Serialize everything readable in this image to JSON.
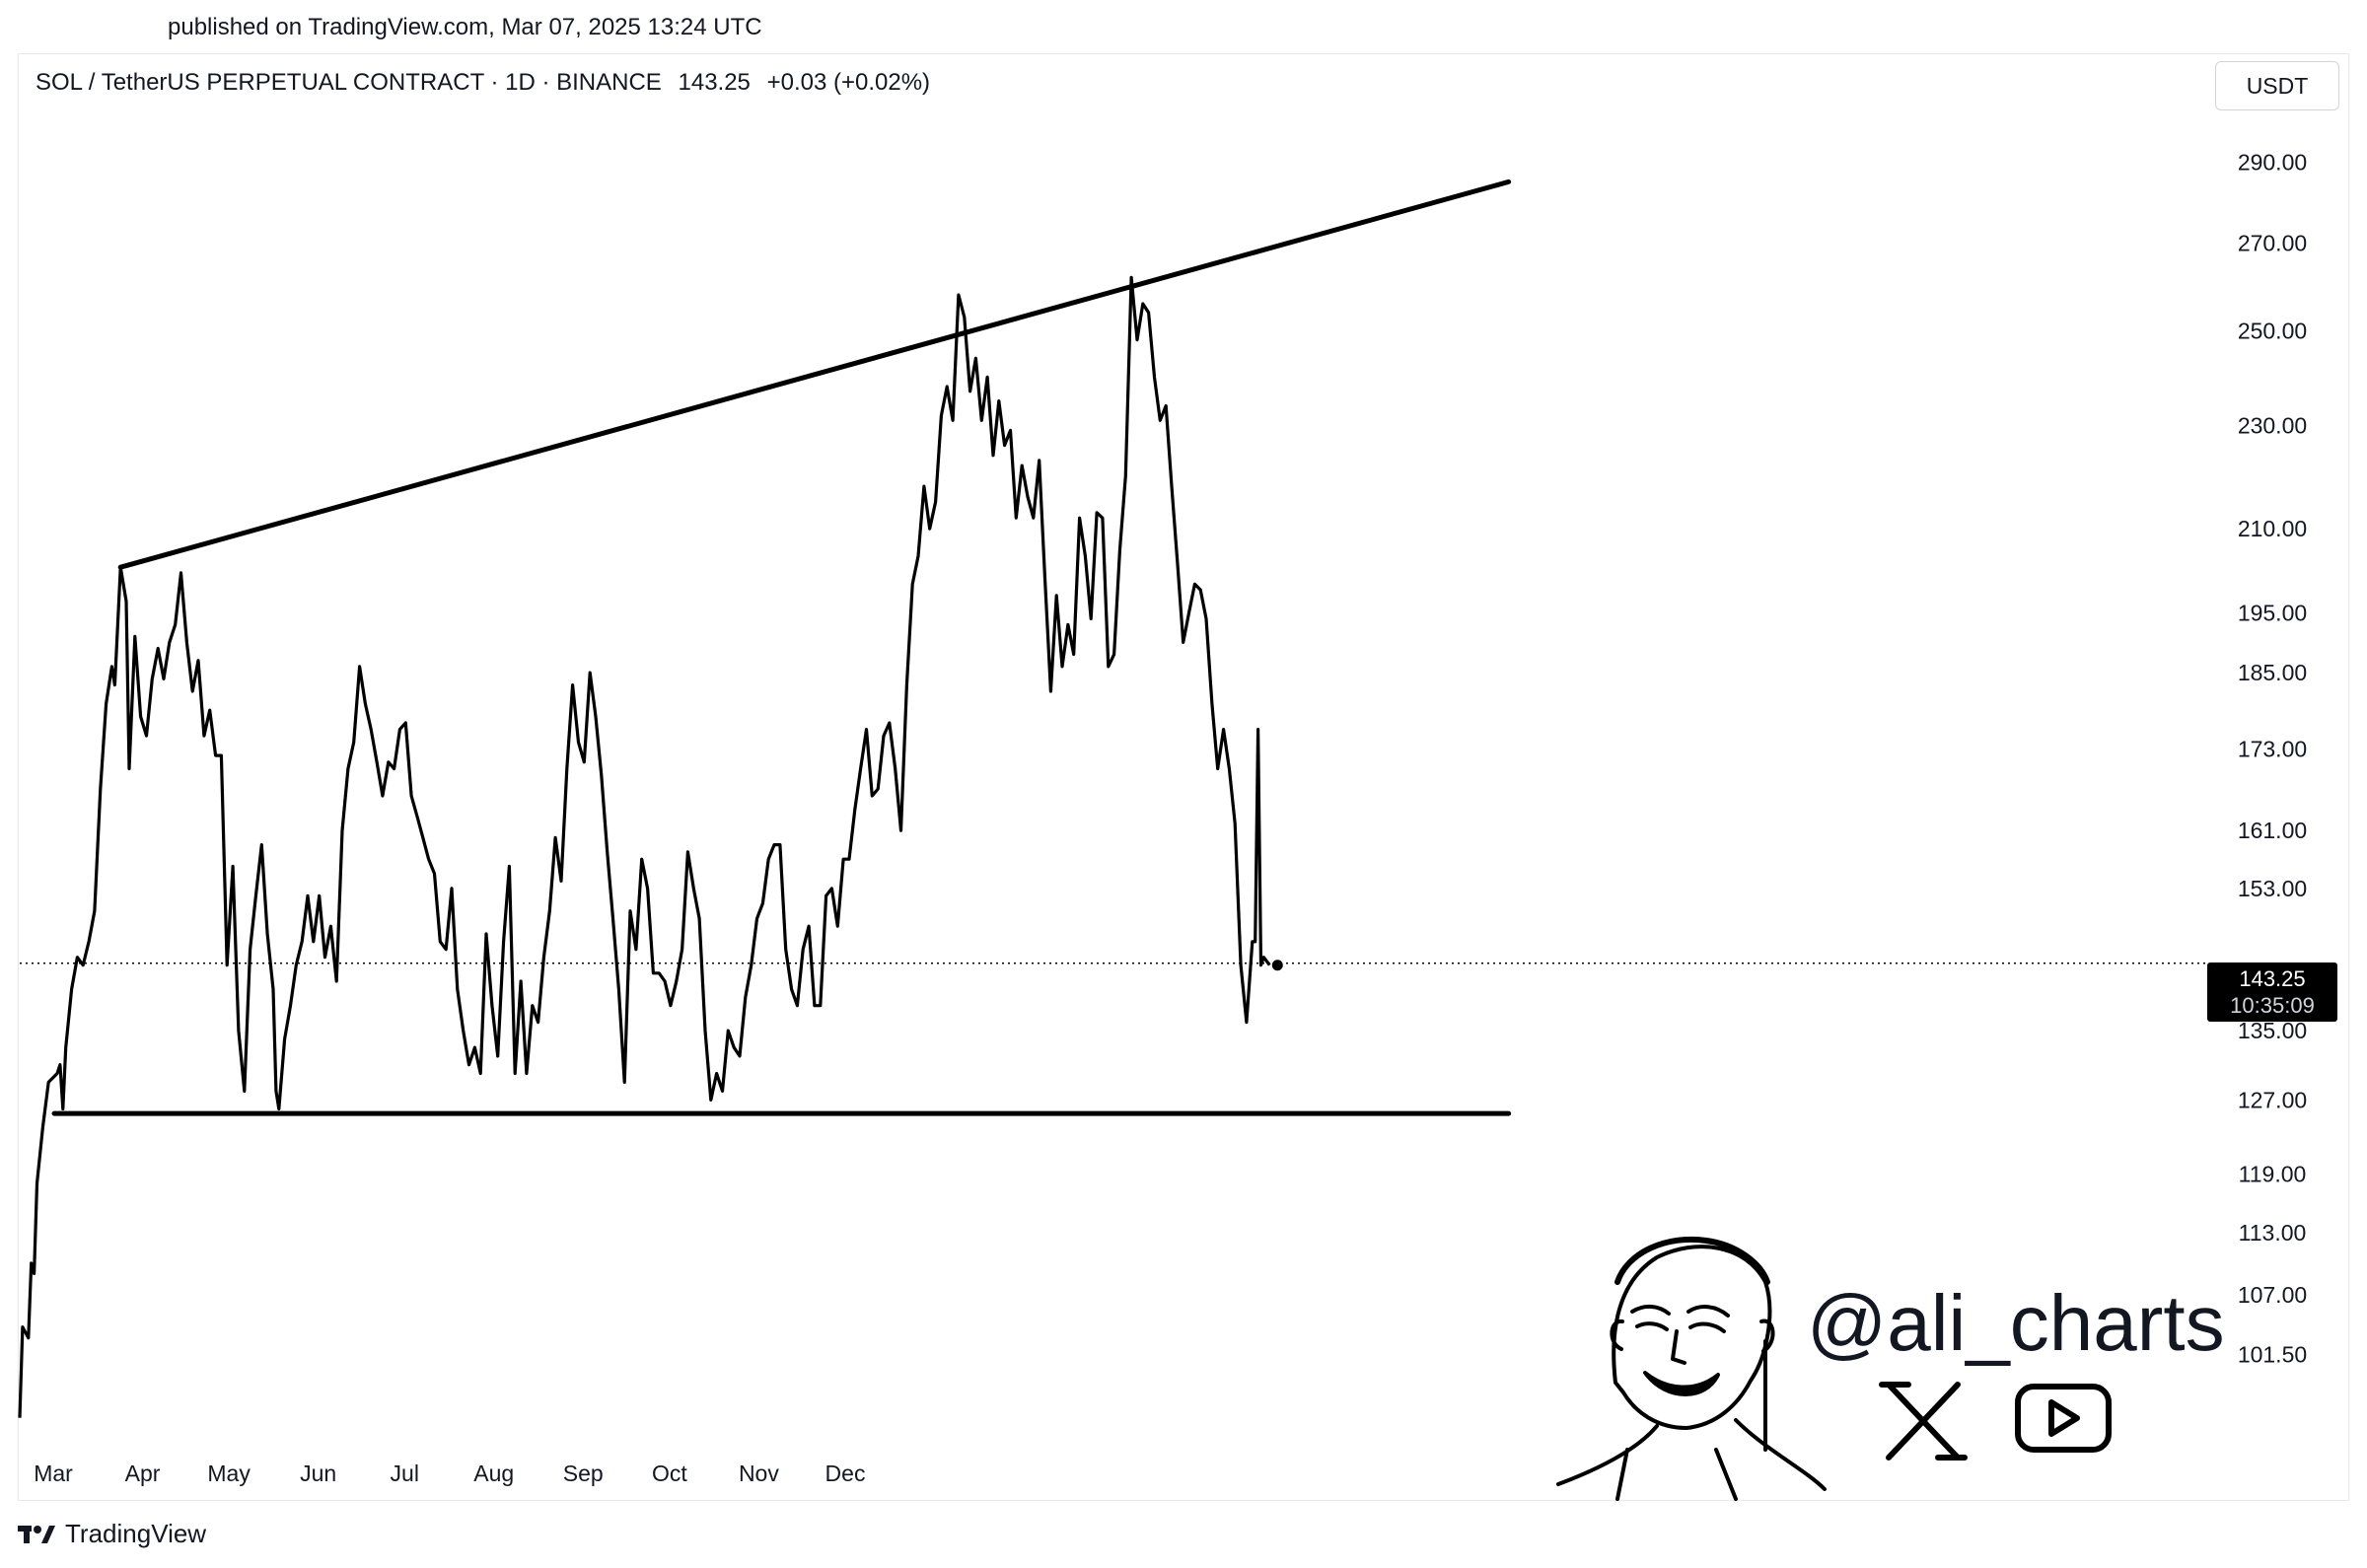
{
  "published": "published on TradingView.com, Mar 07, 2025 13:24 UTC",
  "header": {
    "symbol": "SOL / TetherUS PERPETUAL CONTRACT · 1D · BINANCE",
    "last_price": "143.25",
    "change": "+0.03 (+0.02%)"
  },
  "currency": "USDT",
  "price_badge": {
    "price": "143.25",
    "countdown": "10:35:09"
  },
  "watermark": "@ali_charts",
  "footer_brand": "TradingView",
  "social_icons": [
    "x-logo-icon",
    "youtube-icon"
  ],
  "chart_data": {
    "type": "line",
    "y_scale": "log",
    "ylim": [
      94,
      298
    ],
    "x_ticks": [
      "Mar",
      "Apr",
      "May",
      "Jun",
      "Jul",
      "Aug",
      "Sep",
      "Oct",
      "Nov",
      "Dec"
    ],
    "y_ticks": [
      "290.00",
      "270.00",
      "250.00",
      "230.00",
      "210.00",
      "195.00",
      "185.00",
      "173.00",
      "161.00",
      "153.00",
      "143.25",
      "135.00",
      "127.00",
      "119.00",
      "113.00",
      "107.00",
      "101.50"
    ],
    "current_price": 143.25,
    "series": [
      {
        "values": [
          [
            0,
            96
          ],
          [
            1,
            104
          ],
          [
            3,
            103
          ],
          [
            4,
            110
          ],
          [
            5,
            109
          ],
          [
            6,
            118
          ],
          [
            8,
            124
          ],
          [
            10,
            129
          ],
          [
            13,
            130
          ],
          [
            14,
            131
          ],
          [
            15,
            126
          ],
          [
            16,
            133
          ],
          [
            18,
            140
          ],
          [
            20,
            144
          ],
          [
            22,
            143
          ],
          [
            24,
            146
          ],
          [
            26,
            150
          ],
          [
            28,
            167
          ],
          [
            30,
            180
          ],
          [
            32,
            186
          ],
          [
            33,
            183
          ],
          [
            35,
            203
          ],
          [
            37,
            197
          ],
          [
            38,
            170
          ],
          [
            40,
            191
          ],
          [
            42,
            178
          ],
          [
            44,
            175
          ],
          [
            46,
            184
          ],
          [
            48,
            189
          ],
          [
            50,
            184
          ],
          [
            52,
            190
          ],
          [
            54,
            193
          ],
          [
            56,
            202
          ],
          [
            58,
            190
          ],
          [
            60,
            182
          ],
          [
            62,
            187
          ],
          [
            64,
            175
          ],
          [
            66,
            179
          ],
          [
            68,
            172
          ],
          [
            70,
            172
          ],
          [
            72,
            143
          ],
          [
            74,
            156
          ],
          [
            76,
            135
          ],
          [
            78,
            128
          ],
          [
            80,
            145
          ],
          [
            82,
            152
          ],
          [
            84,
            159
          ],
          [
            86,
            147
          ],
          [
            88,
            140
          ],
          [
            89,
            128
          ],
          [
            90,
            126
          ],
          [
            92,
            134
          ],
          [
            94,
            138
          ],
          [
            96,
            143
          ],
          [
            98,
            146
          ],
          [
            100,
            152
          ],
          [
            102,
            146
          ],
          [
            104,
            152
          ],
          [
            106,
            144
          ],
          [
            108,
            148
          ],
          [
            110,
            141
          ],
          [
            112,
            161
          ],
          [
            114,
            170
          ],
          [
            116,
            174
          ],
          [
            118,
            186
          ],
          [
            120,
            180
          ],
          [
            122,
            176
          ],
          [
            124,
            171
          ],
          [
            126,
            166
          ],
          [
            128,
            171
          ],
          [
            130,
            170
          ],
          [
            132,
            176
          ],
          [
            134,
            177
          ],
          [
            136,
            166
          ],
          [
            138,
            163
          ],
          [
            140,
            160
          ],
          [
            142,
            157
          ],
          [
            144,
            155
          ],
          [
            146,
            146
          ],
          [
            148,
            145
          ],
          [
            150,
            153
          ],
          [
            152,
            140
          ],
          [
            154,
            135
          ],
          [
            156,
            131
          ],
          [
            158,
            133
          ],
          [
            160,
            130
          ],
          [
            162,
            147
          ],
          [
            164,
            138
          ],
          [
            166,
            132
          ],
          [
            168,
            146
          ],
          [
            170,
            156
          ],
          [
            172,
            130
          ],
          [
            174,
            141
          ],
          [
            176,
            130
          ],
          [
            178,
            138
          ],
          [
            180,
            136
          ],
          [
            182,
            144
          ],
          [
            184,
            150
          ],
          [
            186,
            160
          ],
          [
            188,
            154
          ],
          [
            190,
            170
          ],
          [
            192,
            183
          ],
          [
            194,
            174
          ],
          [
            196,
            171
          ],
          [
            198,
            185
          ],
          [
            200,
            178
          ],
          [
            202,
            169
          ],
          [
            204,
            158
          ],
          [
            206,
            149
          ],
          [
            208,
            140
          ],
          [
            210,
            129
          ],
          [
            212,
            150
          ],
          [
            214,
            145
          ],
          [
            216,
            157
          ],
          [
            218,
            153
          ],
          [
            220,
            142
          ],
          [
            222,
            142
          ],
          [
            224,
            141
          ],
          [
            226,
            138
          ],
          [
            228,
            141
          ],
          [
            230,
            145
          ],
          [
            232,
            158
          ],
          [
            234,
            153
          ],
          [
            236,
            149
          ],
          [
            238,
            135
          ],
          [
            240,
            127
          ],
          [
            242,
            130
          ],
          [
            244,
            128
          ],
          [
            246,
            135
          ],
          [
            248,
            133
          ],
          [
            250,
            132
          ],
          [
            252,
            139
          ],
          [
            254,
            143
          ],
          [
            256,
            149
          ],
          [
            258,
            151
          ],
          [
            260,
            157
          ],
          [
            262,
            159
          ],
          [
            264,
            159
          ],
          [
            266,
            145
          ],
          [
            268,
            140
          ],
          [
            270,
            138
          ],
          [
            272,
            145
          ],
          [
            274,
            148
          ],
          [
            276,
            138
          ],
          [
            278,
            138
          ],
          [
            280,
            152
          ],
          [
            282,
            153
          ],
          [
            284,
            148
          ],
          [
            286,
            157
          ],
          [
            288,
            157
          ],
          [
            290,
            164
          ],
          [
            292,
            170
          ],
          [
            294,
            176
          ],
          [
            296,
            166
          ],
          [
            298,
            167
          ],
          [
            300,
            175
          ],
          [
            302,
            177
          ],
          [
            304,
            170
          ],
          [
            306,
            161
          ],
          [
            308,
            183
          ],
          [
            310,
            200
          ],
          [
            312,
            205
          ],
          [
            314,
            218
          ],
          [
            316,
            210
          ],
          [
            318,
            215
          ],
          [
            320,
            232
          ],
          [
            322,
            238
          ],
          [
            324,
            231
          ],
          [
            326,
            258
          ],
          [
            328,
            253
          ],
          [
            330,
            237
          ],
          [
            332,
            244
          ],
          [
            334,
            231
          ],
          [
            336,
            240
          ],
          [
            338,
            224
          ],
          [
            340,
            235
          ],
          [
            342,
            226
          ],
          [
            344,
            229
          ],
          [
            346,
            212
          ],
          [
            348,
            222
          ],
          [
            350,
            216
          ],
          [
            352,
            212
          ],
          [
            354,
            223
          ],
          [
            356,
            201
          ],
          [
            358,
            182
          ],
          [
            360,
            198
          ],
          [
            362,
            186
          ],
          [
            364,
            193
          ],
          [
            366,
            188
          ],
          [
            368,
            212
          ],
          [
            370,
            205
          ],
          [
            372,
            194
          ],
          [
            374,
            213
          ],
          [
            376,
            212
          ],
          [
            378,
            186
          ],
          [
            380,
            188
          ],
          [
            382,
            206
          ],
          [
            384,
            220
          ],
          [
            386,
            262
          ],
          [
            388,
            248
          ],
          [
            390,
            256
          ],
          [
            392,
            254
          ],
          [
            394,
            240
          ],
          [
            396,
            231
          ],
          [
            398,
            234
          ],
          [
            400,
            218
          ],
          [
            402,
            204
          ],
          [
            404,
            190
          ],
          [
            406,
            195
          ],
          [
            408,
            200
          ],
          [
            410,
            199
          ],
          [
            412,
            194
          ],
          [
            414,
            180
          ],
          [
            416,
            170
          ],
          [
            418,
            176
          ],
          [
            420,
            170
          ],
          [
            422,
            162
          ],
          [
            424,
            143
          ],
          [
            426,
            136
          ],
          [
            428,
            146
          ],
          [
            429,
            146
          ],
          [
            430,
            176
          ],
          [
            431,
            143
          ],
          [
            432,
            144
          ],
          [
            434,
            143
          ]
        ]
      }
    ],
    "trendlines": [
      {
        "name": "resistance",
        "from": [
          35,
          203
        ],
        "to": [
          517,
          285
        ]
      },
      {
        "name": "support",
        "from": [
          12,
          125.5
        ],
        "to": [
          517,
          125.5
        ]
      }
    ]
  }
}
